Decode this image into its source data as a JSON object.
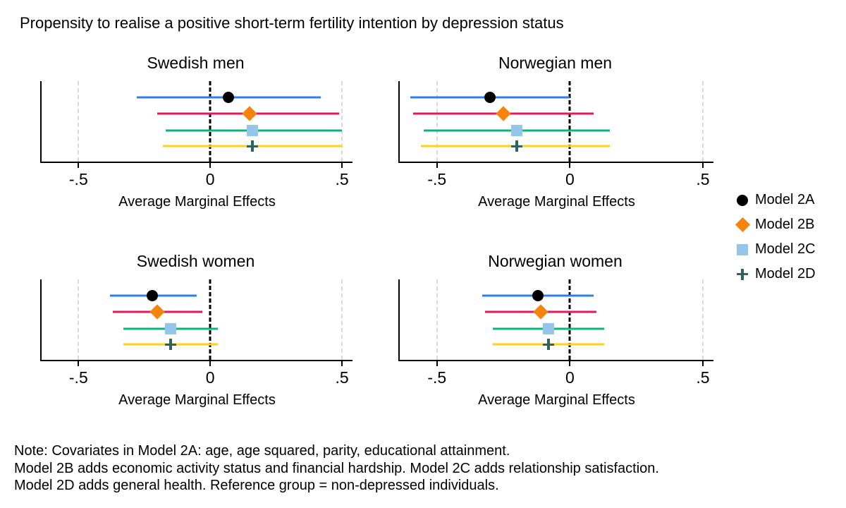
{
  "title": "Propensity to realise a positive short-term fertility intention by depression status",
  "note_lines": [
    "Note: Covariates in Model 2A: age, age squared, parity, educational attainment.",
    "Model 2B adds economic activity status and financial hardship. Model 2C adds relationship satisfaction.",
    "Model 2D adds general health. Reference group = non-depressed individuals."
  ],
  "legend": {
    "items": [
      {
        "label": "Model 2A",
        "marker": "circle"
      },
      {
        "label": "Model 2B",
        "marker": "diamond"
      },
      {
        "label": "Model 2C",
        "marker": "square"
      },
      {
        "label": "Model 2D",
        "marker": "plus"
      }
    ]
  },
  "series_styles": [
    {
      "name": "Model 2A",
      "marker": "circle",
      "marker_color": "#000000",
      "line_color": "#2e80e8"
    },
    {
      "name": "Model 2B",
      "marker": "diamond",
      "marker_color": "#f8830b",
      "line_color": "#e4185c"
    },
    {
      "name": "Model 2C",
      "marker": "square",
      "marker_color": "#94c6ea",
      "line_color": "#0db47a"
    },
    {
      "name": "Model 2D",
      "marker": "plus",
      "marker_color": "#2e6360",
      "line_color": "#ffd117"
    }
  ],
  "colors": {
    "zero_line": "#000000",
    "gridline": "#d9d9d9",
    "axis": "#000000",
    "background": "#ffffff"
  },
  "chart_data": {
    "type": "scatter",
    "variant": "coefficient-plot-with-confidence-intervals",
    "xlabel": "Average Marginal Effects",
    "xlim": [
      -0.64,
      0.54
    ],
    "x_ticks": [
      -0.5,
      0,
      0.5
    ],
    "x_tick_labels": [
      "-.5",
      "0",
      ".5"
    ],
    "grid": "vertical-dashed-at-ticks",
    "zero_reference_line": 0,
    "legend_position": "right",
    "panels": [
      {
        "title": "Swedish men",
        "series": [
          {
            "name": "Model 2A",
            "est": 0.07,
            "lo": -0.28,
            "hi": 0.42
          },
          {
            "name": "Model 2B",
            "est": 0.15,
            "lo": -0.2,
            "hi": 0.49
          },
          {
            "name": "Model 2C",
            "est": 0.16,
            "lo": -0.17,
            "hi": 0.5
          },
          {
            "name": "Model 2D",
            "est": 0.16,
            "lo": -0.18,
            "hi": 0.5
          }
        ]
      },
      {
        "title": "Norwegian men",
        "series": [
          {
            "name": "Model 2A",
            "est": -0.3,
            "lo": -0.6,
            "hi": 0.0
          },
          {
            "name": "Model 2B",
            "est": -0.25,
            "lo": -0.59,
            "hi": 0.09
          },
          {
            "name": "Model 2C",
            "est": -0.2,
            "lo": -0.55,
            "hi": 0.15
          },
          {
            "name": "Model 2D",
            "est": -0.2,
            "lo": -0.56,
            "hi": 0.15
          }
        ]
      },
      {
        "title": "Swedish women",
        "series": [
          {
            "name": "Model 2A",
            "est": -0.22,
            "lo": -0.38,
            "hi": -0.05
          },
          {
            "name": "Model 2B",
            "est": -0.2,
            "lo": -0.37,
            "hi": -0.03
          },
          {
            "name": "Model 2C",
            "est": -0.15,
            "lo": -0.33,
            "hi": 0.03
          },
          {
            "name": "Model 2D",
            "est": -0.15,
            "lo": -0.33,
            "hi": 0.03
          }
        ]
      },
      {
        "title": "Norwegian women",
        "series": [
          {
            "name": "Model 2A",
            "est": -0.12,
            "lo": -0.33,
            "hi": 0.09
          },
          {
            "name": "Model 2B",
            "est": -0.11,
            "lo": -0.32,
            "hi": 0.1
          },
          {
            "name": "Model 2C",
            "est": -0.08,
            "lo": -0.29,
            "hi": 0.13
          },
          {
            "name": "Model 2D",
            "est": -0.08,
            "lo": -0.29,
            "hi": 0.13
          }
        ]
      }
    ]
  }
}
